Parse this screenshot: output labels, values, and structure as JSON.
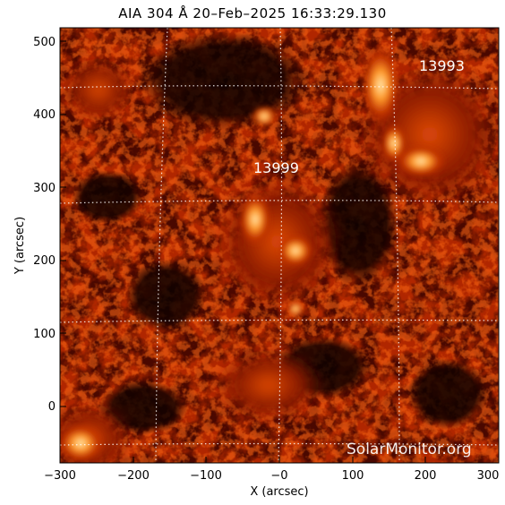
{
  "title": "AIA 304 Å 20–Feb–2025 16:33:29.130",
  "axes": {
    "xlabel": "X (arcsec)",
    "ylabel": "Y (arcsec)",
    "xlim": [
      -300,
      300
    ],
    "ylim": [
      -80,
      520
    ],
    "x_ticks": [
      "−300",
      "−200",
      "−100",
      "−0",
      "100",
      "200",
      "300"
    ],
    "y_ticks": [
      "0",
      "100",
      "200",
      "300",
      "400",
      "500"
    ]
  },
  "regions": [
    {
      "label": "13993"
    },
    {
      "label": "13999"
    }
  ],
  "watermark": "SolarMonitor.org",
  "colors": {
    "background": "#0b0000",
    "low": "#3a0400",
    "mid": "#a82200",
    "high": "#ff7a1a",
    "peak": "#ffe9b0"
  }
}
